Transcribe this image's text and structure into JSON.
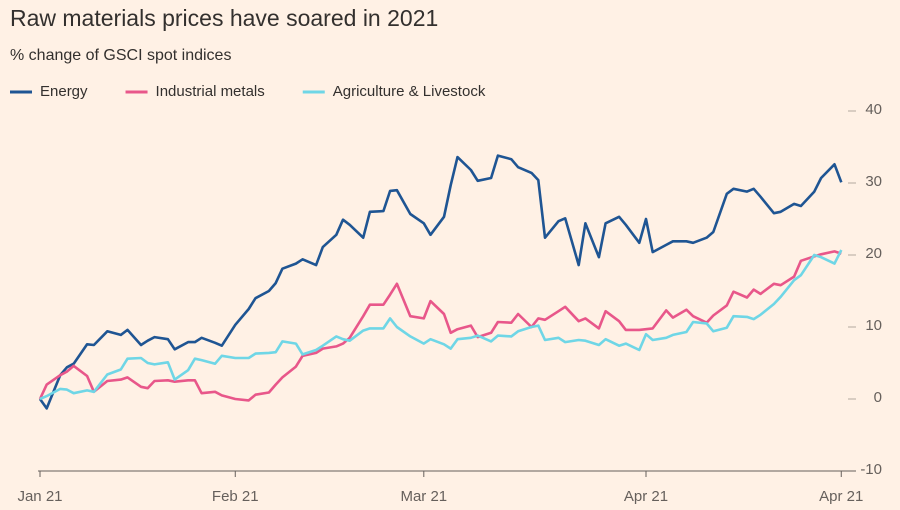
{
  "chart_data": {
    "type": "line",
    "title": "Raw materials prices have soared in 2021",
    "subtitle": "% change of GSCI spot indices",
    "x": [
      0,
      1,
      3,
      4,
      5,
      7,
      8,
      10,
      12,
      13,
      15,
      16,
      17,
      19,
      20,
      22,
      23,
      24,
      26,
      27,
      29,
      31,
      32,
      34,
      35,
      36,
      38,
      39,
      41,
      42,
      44,
      45,
      46,
      48,
      49,
      51,
      52,
      53,
      55,
      57,
      58,
      60,
      61,
      62,
      64,
      65,
      67,
      68,
      70,
      71,
      73,
      74,
      75,
      77,
      78,
      80,
      81,
      83,
      84,
      86,
      87,
      89,
      90,
      91,
      93,
      94,
      96,
      97,
      99,
      100,
      102,
      103,
      105,
      106,
      107,
      109,
      110,
      112,
      113,
      115,
      116,
      118,
      119
    ],
    "series": [
      {
        "name": "Energy",
        "color": "#1f5593",
        "values": [
          0,
          -1.3,
          3.3,
          4.4,
          4.9,
          7.6,
          7.5,
          9.4,
          8.9,
          9.6,
          7.5,
          8.1,
          8.6,
          8.3,
          6.9,
          7.9,
          7.9,
          8.5,
          7.8,
          7.4,
          10.3,
          12.5,
          14,
          15,
          16.1,
          18.1,
          18.8,
          19.4,
          18.6,
          21.1,
          22.8,
          24.9,
          24.2,
          22.4,
          26,
          26.1,
          28.9,
          29,
          25.7,
          24.4,
          22.8,
          25.3,
          29.7,
          33.6,
          31.8,
          30.3,
          30.7,
          33.8,
          33.3,
          32.2,
          31.4,
          30.4,
          22.4,
          24.7,
          25.1,
          18.6,
          24.4,
          19.7,
          24.4,
          25.3,
          24.2,
          21.7,
          25,
          20.4,
          21.4,
          21.9,
          21.9,
          21.7,
          22.4,
          23.2,
          28.5,
          29.2,
          28.8,
          29.2,
          28.1,
          25.8,
          26,
          27.1,
          26.8,
          28.8,
          30.7,
          32.6,
          30.1
        ]
      },
      {
        "name": "Industrial metals",
        "color": "#e8578a",
        "values": [
          0,
          2,
          3.3,
          3.8,
          4.6,
          3.2,
          1,
          2.5,
          2.7,
          3,
          1.7,
          1.5,
          2.5,
          2.6,
          2.4,
          2.6,
          2.6,
          0.8,
          1,
          0.5,
          0,
          -0.2,
          0.6,
          0.9,
          2,
          3,
          4.5,
          6,
          6.4,
          7,
          7.3,
          7.7,
          8.5,
          11.5,
          13.1,
          13.1,
          14.5,
          16,
          11.5,
          11.2,
          13.6,
          11.8,
          9.2,
          9.7,
          10.2,
          8.6,
          9.2,
          10.7,
          10.6,
          11.8,
          10,
          11.2,
          11,
          12.2,
          12.8,
          10.8,
          11.2,
          9.8,
          12.2,
          10.8,
          9.6,
          9.6,
          9.7,
          9.8,
          12.3,
          11.3,
          12.4,
          11.5,
          10.6,
          11.6,
          13,
          14.9,
          14.1,
          15.2,
          14.6,
          16,
          15.8,
          17,
          19.2,
          19.8,
          20.1,
          20.5,
          20.2
        ]
      },
      {
        "name": "Agriculture & Livestock",
        "color": "#6fd6e6",
        "values": [
          0,
          0.4,
          1.4,
          1.3,
          0.8,
          1.2,
          1,
          3.4,
          4.1,
          5.6,
          5.7,
          5,
          4.8,
          5.1,
          2.7,
          4,
          5.6,
          5.4,
          4.9,
          6,
          5.7,
          5.7,
          6.3,
          6.4,
          6.5,
          8,
          7.7,
          6.2,
          6.8,
          7.4,
          8.7,
          8.3,
          8.1,
          9.5,
          9.8,
          9.8,
          11.2,
          10,
          8.7,
          7.7,
          8.3,
          7.6,
          7,
          8.3,
          8.5,
          8.8,
          8,
          8.8,
          8.7,
          9.4,
          10,
          10.2,
          8.2,
          8.5,
          7.9,
          8.2,
          8.1,
          7.5,
          8.3,
          7.4,
          7.7,
          6.8,
          9,
          8.2,
          8.5,
          8.9,
          9.3,
          10.7,
          10.5,
          9.4,
          9.9,
          11.5,
          11.4,
          11.1,
          11.7,
          13.2,
          14.2,
          16.5,
          17.2,
          20,
          19.7,
          18.8,
          20.7
        ]
      }
    ],
    "xlim": [
      0,
      120
    ],
    "xticks": [
      {
        "value": 0,
        "label": "Jan 21"
      },
      {
        "value": 29,
        "label": "Feb 21"
      },
      {
        "value": 57,
        "label": "Mar 21"
      },
      {
        "value": 90,
        "label": "Apr 21"
      },
      {
        "value": 119,
        "label": "Apr 21"
      }
    ],
    "ylim": [
      -10,
      40
    ],
    "yticks": [
      -10,
      0,
      10,
      20,
      30,
      40
    ],
    "legend": "top-left"
  }
}
